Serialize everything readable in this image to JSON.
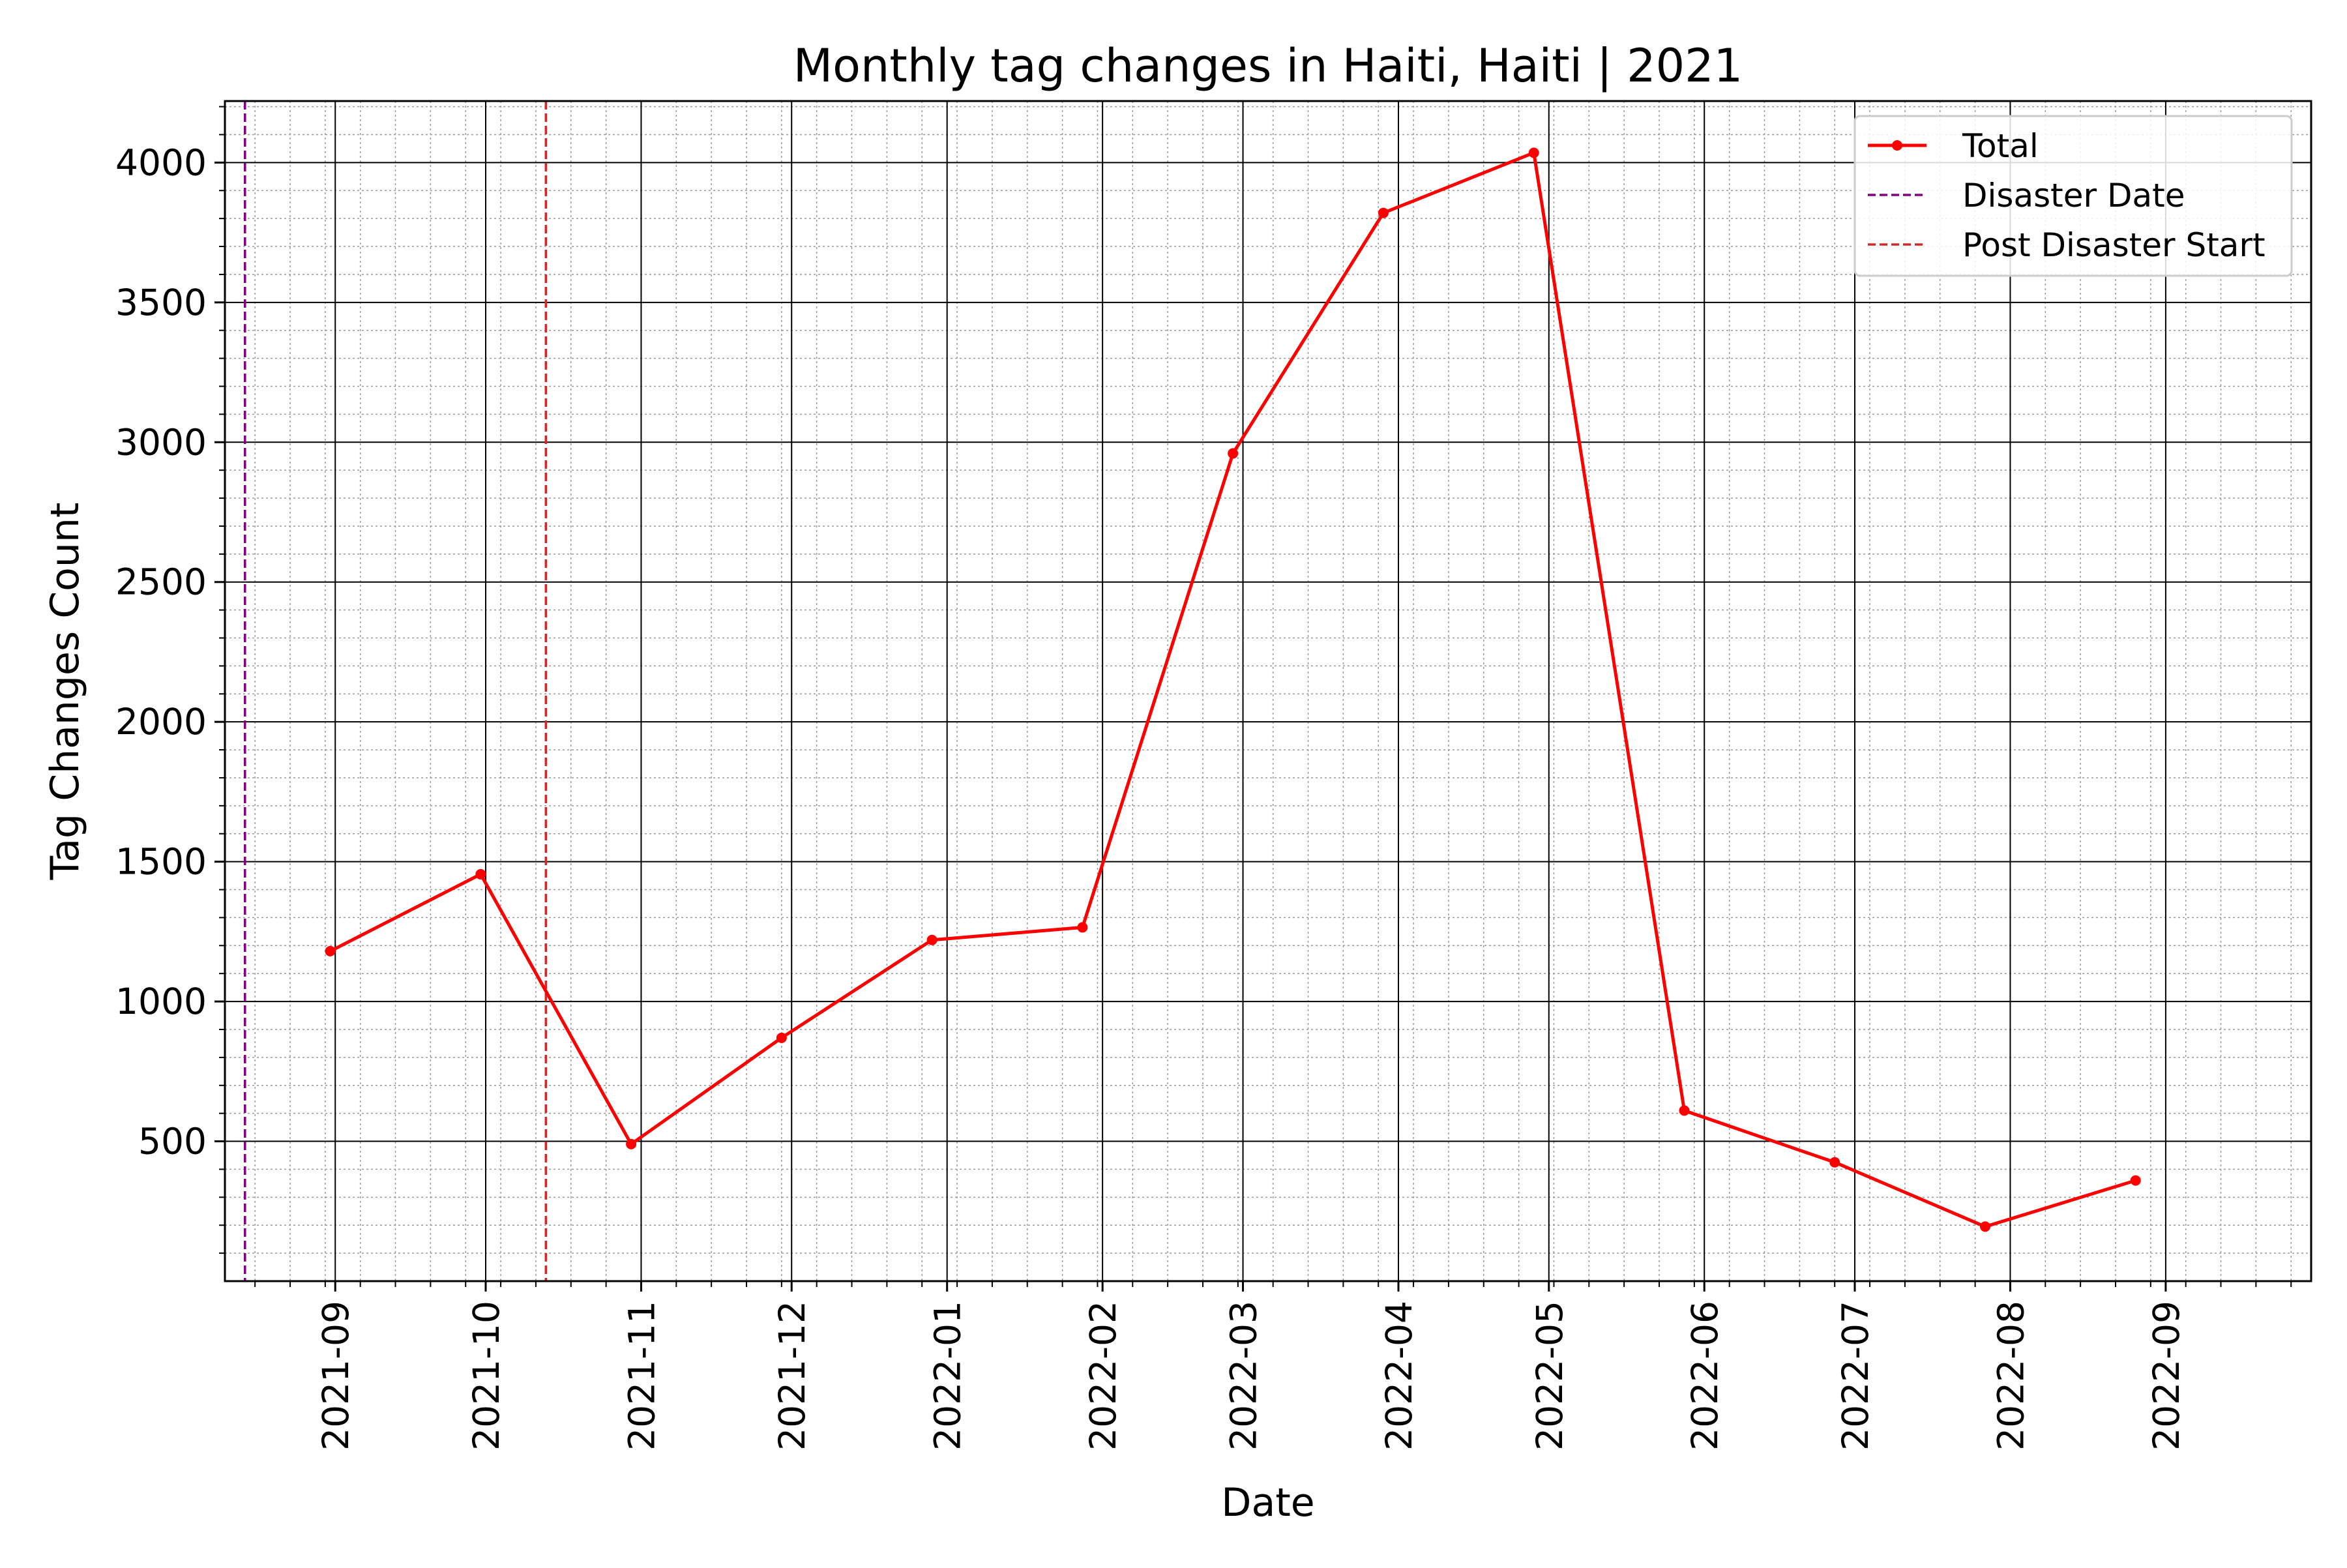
{
  "chart_data": {
    "type": "line",
    "title": "Monthly tag changes in Haiti, Haiti | 2021",
    "xlabel": "Date",
    "ylabel": "Tag Changes Count",
    "x_axis": {
      "kind": "date",
      "range": [
        "2021-08-10",
        "2022-09-30"
      ],
      "ticks": [
        "2021-09-01",
        "2021-10-01",
        "2021-11-01",
        "2021-12-01",
        "2022-01-01",
        "2022-02-01",
        "2022-03-01",
        "2022-04-01",
        "2022-05-01",
        "2022-06-01",
        "2022-07-01",
        "2022-08-01",
        "2022-09-01"
      ],
      "tick_labels": [
        "2021-09",
        "2021-10",
        "2021-11",
        "2021-12",
        "2022-01",
        "2022-02",
        "2022-03",
        "2022-04",
        "2022-05",
        "2022-06",
        "2022-07",
        "2022-08",
        "2022-09"
      ],
      "tick_label_rotation": "vertical"
    },
    "y_axis": {
      "range": [
        0,
        4220
      ],
      "ticks": [
        500,
        1000,
        1500,
        2000,
        2500,
        3000,
        3500,
        4000
      ],
      "tick_labels": [
        "500",
        "1000",
        "1500",
        "2000",
        "2500",
        "3000",
        "3500",
        "4000"
      ],
      "minor_step": 100
    },
    "grid": {
      "major": true,
      "minor": true,
      "minor_style": "dotted"
    },
    "series": [
      {
        "name": "Total",
        "color": "#ff0000",
        "marker": "circle",
        "x": [
          "2021-08-31",
          "2021-09-30",
          "2021-10-30",
          "2021-11-29",
          "2021-12-29",
          "2022-01-28",
          "2022-02-27",
          "2022-03-29",
          "2022-04-28",
          "2022-05-28",
          "2022-06-27",
          "2022-07-27",
          "2022-08-26"
        ],
        "y": [
          1180,
          1455,
          490,
          870,
          1220,
          1265,
          2960,
          3820,
          4035,
          610,
          425,
          195,
          360
        ]
      }
    ],
    "reference_lines": [
      {
        "name": "Disaster Date",
        "x": "2021-08-14",
        "color": "#800080",
        "style": "dashed"
      },
      {
        "name": "Post Disaster Start",
        "x": "2021-10-13",
        "color": "#d62728",
        "style": "dashed"
      }
    ],
    "legend": {
      "placement": "top-right",
      "entries": [
        "Total",
        "Disaster Date",
        "Post Disaster Start"
      ]
    }
  }
}
